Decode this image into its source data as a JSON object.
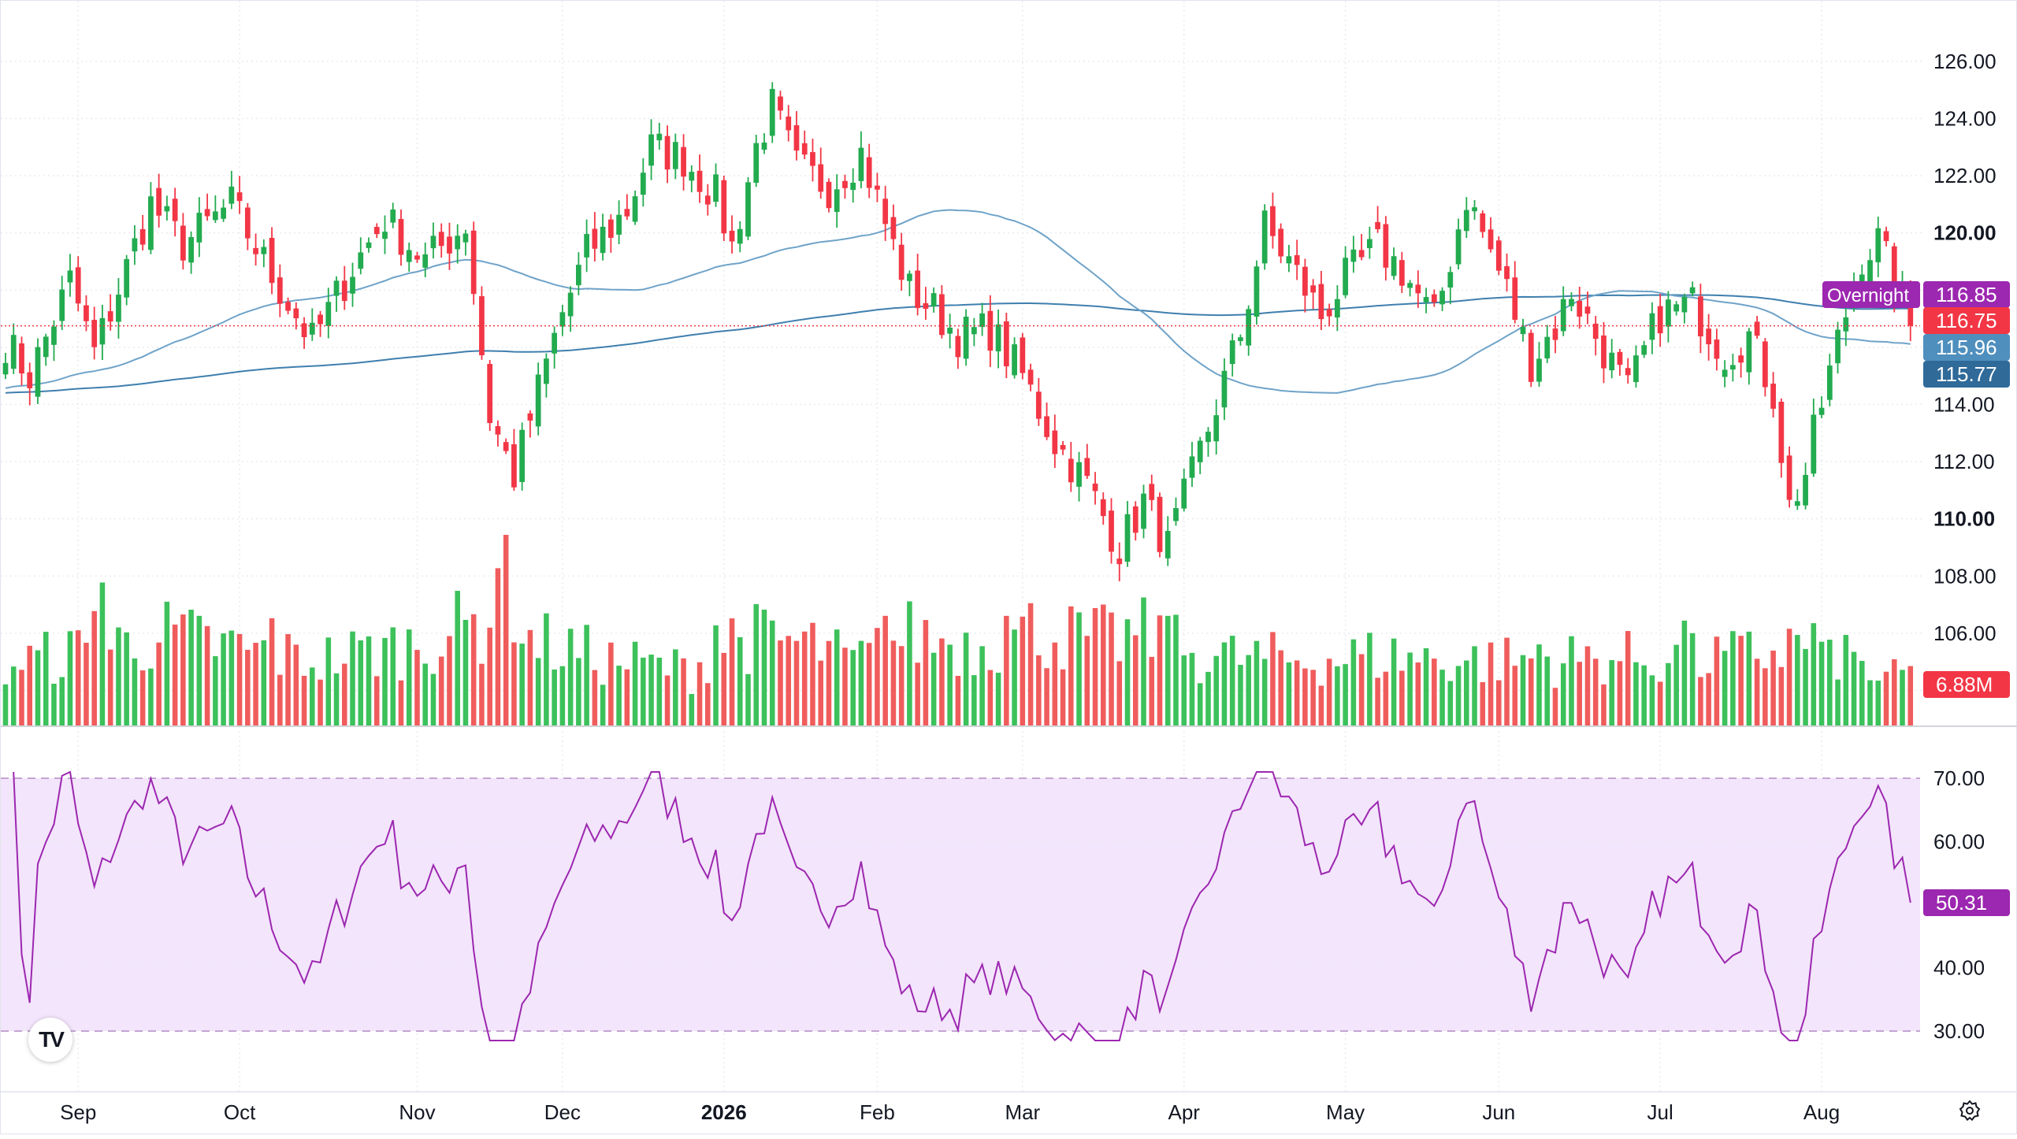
{
  "logo": "TV",
  "settings_icon": "gear-icon",
  "colors": {
    "up": "#22ab4f",
    "down": "#f23645",
    "up_volume": "#3cc15b",
    "down_volume": "#f05c5c",
    "ma50": "#6fa3c9",
    "ma200": "#3f7fae",
    "rsi_line": "#9c27b0",
    "rsi_band": "#f3e5fb",
    "overnight_label": "#9c27b0",
    "last_price_label": "#f23645",
    "ma50_label": "#4f8fbe",
    "ma200_label": "#2f6a99"
  },
  "chart_data": [
    {
      "type": "candlestick",
      "name": "price",
      "x_axis_labels": [
        "Sep",
        "Oct",
        "Nov",
        "Dec",
        "2026",
        "Feb",
        "Mar",
        "Apr",
        "May",
        "Jun",
        "Jul",
        "Aug"
      ],
      "y_ticks": [
        "126.00",
        "124.00",
        "122.00",
        "120.00",
        "118.00",
        "116.00",
        "114.00",
        "112.00",
        "110.00",
        "108.00",
        "106.00",
        "104.00"
      ],
      "bold_ticks": [
        "120.00",
        "110.00"
      ],
      "ylim": [
        103.6,
        126.6
      ],
      "grid": true,
      "price_labels": {
        "overnight_text": "Overnight",
        "overnight": "116.85",
        "last": "116.75",
        "ma50": "115.96",
        "ma200": "115.77",
        "volume": "6.88M"
      },
      "month_anchors": [
        {
          "label": "Sep",
          "bar": 9
        },
        {
          "label": "Oct",
          "bar": 29
        },
        {
          "label": "Nov",
          "bar": 51
        },
        {
          "label": "Dec",
          "bar": 69
        },
        {
          "label": "2026",
          "bar": 89
        },
        {
          "label": "Feb",
          "bar": 108
        },
        {
          "label": "Mar",
          "bar": 126
        },
        {
          "label": "Apr",
          "bar": 146
        },
        {
          "label": "May",
          "bar": 166
        },
        {
          "label": "Jun",
          "bar": 185
        },
        {
          "label": "Jul",
          "bar": 205
        },
        {
          "label": "Aug",
          "bar": 225
        }
      ],
      "close_anchors": [
        [
          0,
          116.2
        ],
        [
          3,
          115.0
        ],
        [
          8,
          118.3
        ],
        [
          11,
          115.8
        ],
        [
          18,
          121.0
        ],
        [
          22,
          119.6
        ],
        [
          28,
          121.0
        ],
        [
          33,
          118.5
        ],
        [
          38,
          116.2
        ],
        [
          43,
          118.8
        ],
        [
          47,
          120.5
        ],
        [
          52,
          119.0
        ],
        [
          57,
          120.3
        ],
        [
          60,
          113.6
        ],
        [
          63,
          111.5
        ],
        [
          66,
          114.5
        ],
        [
          69,
          117.2
        ],
        [
          72,
          119.3
        ],
        [
          77,
          120.8
        ],
        [
          80,
          123.0
        ],
        [
          84,
          122.6
        ],
        [
          88,
          121.3
        ],
        [
          90,
          119.5
        ],
        [
          93,
          123.0
        ],
        [
          95,
          124.4
        ],
        [
          98,
          122.3
        ],
        [
          102,
          121.6
        ],
        [
          106,
          122.8
        ],
        [
          110,
          119.5
        ],
        [
          112,
          118.0
        ],
        [
          115,
          117.3
        ],
        [
          118,
          116.4
        ],
        [
          122,
          116.6
        ],
        [
          126,
          115.0
        ],
        [
          130,
          112.7
        ],
        [
          134,
          111.2
        ],
        [
          138,
          109.0
        ],
        [
          141,
          110.6
        ],
        [
          144,
          109.0
        ],
        [
          147,
          111.5
        ],
        [
          150,
          114.0
        ],
        [
          153,
          116.5
        ],
        [
          156,
          120.2
        ],
        [
          159,
          119.0
        ],
        [
          163,
          117.1
        ],
        [
          166,
          118.4
        ],
        [
          170,
          119.5
        ],
        [
          173,
          118.7
        ],
        [
          177,
          116.9
        ],
        [
          181,
          121.3
        ],
        [
          183,
          120.0
        ],
        [
          186,
          118.0
        ],
        [
          189,
          115.5
        ],
        [
          192,
          116.7
        ],
        [
          194,
          118.0
        ],
        [
          197,
          116.4
        ],
        [
          201,
          114.4
        ],
        [
          205,
          117.2
        ],
        [
          209,
          117.5
        ],
        [
          213,
          115.8
        ],
        [
          216,
          116.4
        ],
        [
          219,
          114.4
        ],
        [
          221,
          110.4
        ],
        [
          223,
          111.6
        ],
        [
          224,
          112.9
        ],
        [
          227,
          116.2
        ],
        [
          230,
          119.2
        ],
        [
          232,
          119.7
        ],
        [
          235,
          117.6
        ],
        [
          236,
          116.75
        ]
      ],
      "range_amplitude": 0.5,
      "volume_anchors": [
        [
          0,
          2.4
        ],
        [
          10,
          3.0
        ],
        [
          20,
          3.6
        ],
        [
          30,
          3.0
        ],
        [
          38,
          2.6
        ],
        [
          50,
          3.2
        ],
        [
          60,
          4.2
        ],
        [
          62,
          5.9
        ],
        [
          65,
          3.4
        ],
        [
          75,
          2.6
        ],
        [
          85,
          2.2
        ],
        [
          90,
          3.6
        ],
        [
          100,
          3.2
        ],
        [
          105,
          2.5
        ],
        [
          112,
          3.6
        ],
        [
          120,
          3.2
        ],
        [
          127,
          3.8
        ],
        [
          135,
          3.4
        ],
        [
          141,
          3.6
        ],
        [
          148,
          2.8
        ],
        [
          160,
          2.6
        ],
        [
          170,
          2.8
        ],
        [
          180,
          2.6
        ],
        [
          190,
          2.6
        ],
        [
          200,
          2.7
        ],
        [
          210,
          2.6
        ],
        [
          218,
          2.9
        ],
        [
          223,
          3.4
        ],
        [
          228,
          2.8
        ],
        [
          233,
          1.7
        ],
        [
          236,
          2.2
        ]
      ],
      "volume_spikes": [
        [
          12,
          6.0
        ],
        [
          11,
          4.8
        ],
        [
          33,
          4.5
        ],
        [
          61,
          6.6
        ],
        [
          88,
          4.2
        ],
        [
          109,
          4.6
        ],
        [
          124,
          4.6
        ],
        [
          144,
          4.6
        ],
        [
          190,
          3.4
        ],
        [
          208,
          4.4
        ],
        [
          222,
          3.8
        ],
        [
          226,
          3.6
        ]
      ],
      "volume_max": 8.0,
      "last_volume": "6.88M"
    },
    {
      "type": "line",
      "name": "RSI",
      "y_ticks": [
        "70.00",
        "60.00",
        "50.00",
        "40.00",
        "30.00"
      ],
      "ylim": [
        27.5,
        71.5
      ],
      "band": [
        30,
        70
      ],
      "last_value": "50.31",
      "lookback": 14
    }
  ]
}
